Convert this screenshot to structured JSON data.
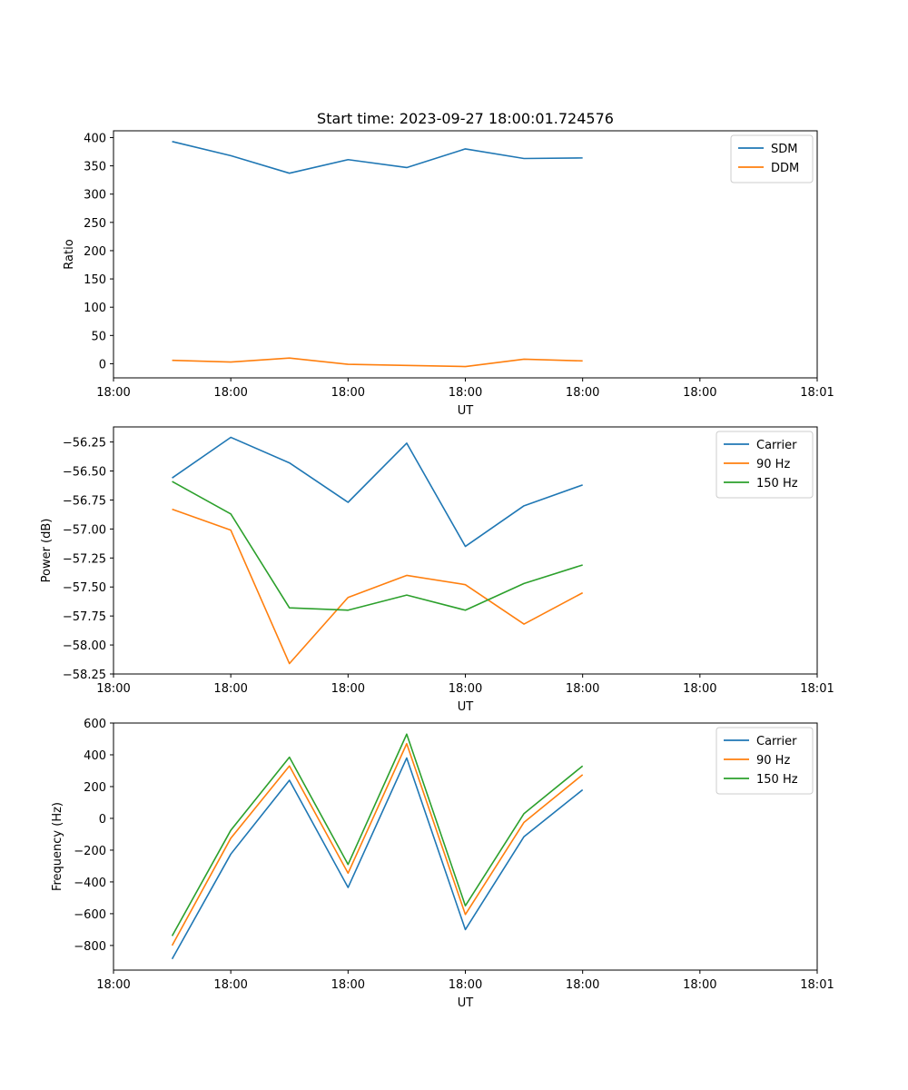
{
  "chart_data": [
    {
      "type": "line",
      "title": "Start time: 2023-09-27 18:00:01.724576",
      "xlabel": "UT",
      "ylabel": "Ratio",
      "x": [
        0.5,
        1.0,
        1.5,
        2.0,
        2.5,
        3.0,
        3.5,
        4.0
      ],
      "xlim": [
        0,
        6
      ],
      "xtick_values": [
        0,
        1,
        2,
        3,
        4,
        5,
        6
      ],
      "xtick_labels": [
        "18:00",
        "18:00",
        "18:00",
        "18:00",
        "18:00",
        "18:00",
        "18:01"
      ],
      "ylim": [
        -25,
        412
      ],
      "yticks": [
        0,
        50,
        100,
        150,
        200,
        250,
        300,
        350,
        400
      ],
      "legend": "top-right",
      "series": [
        {
          "name": "SDM",
          "color": "#1f77b4",
          "values": [
            393,
            368,
            337,
            361,
            347,
            380,
            363,
            364
          ]
        },
        {
          "name": "DDM",
          "color": "#ff7f0e",
          "values": [
            6,
            3,
            10,
            -1,
            -3,
            -5,
            8,
            5
          ]
        }
      ]
    },
    {
      "type": "line",
      "title": "",
      "xlabel": "UT",
      "ylabel": "Power (dB)",
      "x": [
        0.5,
        1.0,
        1.5,
        2.0,
        2.5,
        3.0,
        3.5,
        4.0
      ],
      "xlim": [
        0,
        6
      ],
      "xtick_values": [
        0,
        1,
        2,
        3,
        4,
        5,
        6
      ],
      "xtick_labels": [
        "18:00",
        "18:00",
        "18:00",
        "18:00",
        "18:00",
        "18:00",
        "18:01"
      ],
      "ylim": [
        -58.25,
        -56.12
      ],
      "yticks": [
        -58.25,
        -58.0,
        -57.75,
        -57.5,
        -57.25,
        -57.0,
        -56.75,
        -56.5,
        -56.25
      ],
      "ytick_labels": [
        "−58.25",
        "−58.00",
        "−57.75",
        "−57.50",
        "−57.25",
        "−57.00",
        "−56.75",
        "−56.50",
        "−56.25"
      ],
      "legend": "top-right",
      "series": [
        {
          "name": "Carrier",
          "color": "#1f77b4",
          "values": [
            -56.56,
            -56.21,
            -56.43,
            -56.77,
            -56.26,
            -57.15,
            -56.8,
            -56.62
          ]
        },
        {
          "name": "90 Hz",
          "color": "#ff7f0e",
          "values": [
            -56.83,
            -57.01,
            -58.16,
            -57.59,
            -57.4,
            -57.48,
            -57.82,
            -57.55
          ]
        },
        {
          "name": "150 Hz",
          "color": "#2ca02c",
          "values": [
            -56.59,
            -56.87,
            -57.68,
            -57.7,
            -57.57,
            -57.7,
            -57.47,
            -57.31
          ]
        }
      ]
    },
    {
      "type": "line",
      "title": "",
      "xlabel": "UT",
      "ylabel": "Frequency (Hz)",
      "x": [
        0.5,
        1.0,
        1.5,
        2.0,
        2.5,
        3.0,
        3.5,
        4.0
      ],
      "xlim": [
        0,
        6
      ],
      "xtick_values": [
        0,
        1,
        2,
        3,
        4,
        5,
        6
      ],
      "xtick_labels": [
        "18:00",
        "18:00",
        "18:00",
        "18:00",
        "18:00",
        "18:00",
        "18:01"
      ],
      "ylim": [
        -955,
        600
      ],
      "yticks": [
        -800,
        -600,
        -400,
        -200,
        0,
        200,
        400,
        600
      ],
      "ytick_labels": [
        "−800",
        "−600",
        "−400",
        "−200",
        "0",
        "200",
        "400",
        "600"
      ],
      "legend": "top-right",
      "series": [
        {
          "name": "Carrier",
          "color": "#1f77b4",
          "values": [
            -885,
            -225,
            240,
            -435,
            380,
            -700,
            -115,
            180
          ]
        },
        {
          "name": "90 Hz",
          "color": "#ff7f0e",
          "values": [
            -800,
            -125,
            330,
            -345,
            470,
            -605,
            -25,
            275
          ]
        },
        {
          "name": "150 Hz",
          "color": "#2ca02c",
          "values": [
            -740,
            -75,
            385,
            -290,
            530,
            -550,
            30,
            330
          ]
        }
      ]
    }
  ]
}
